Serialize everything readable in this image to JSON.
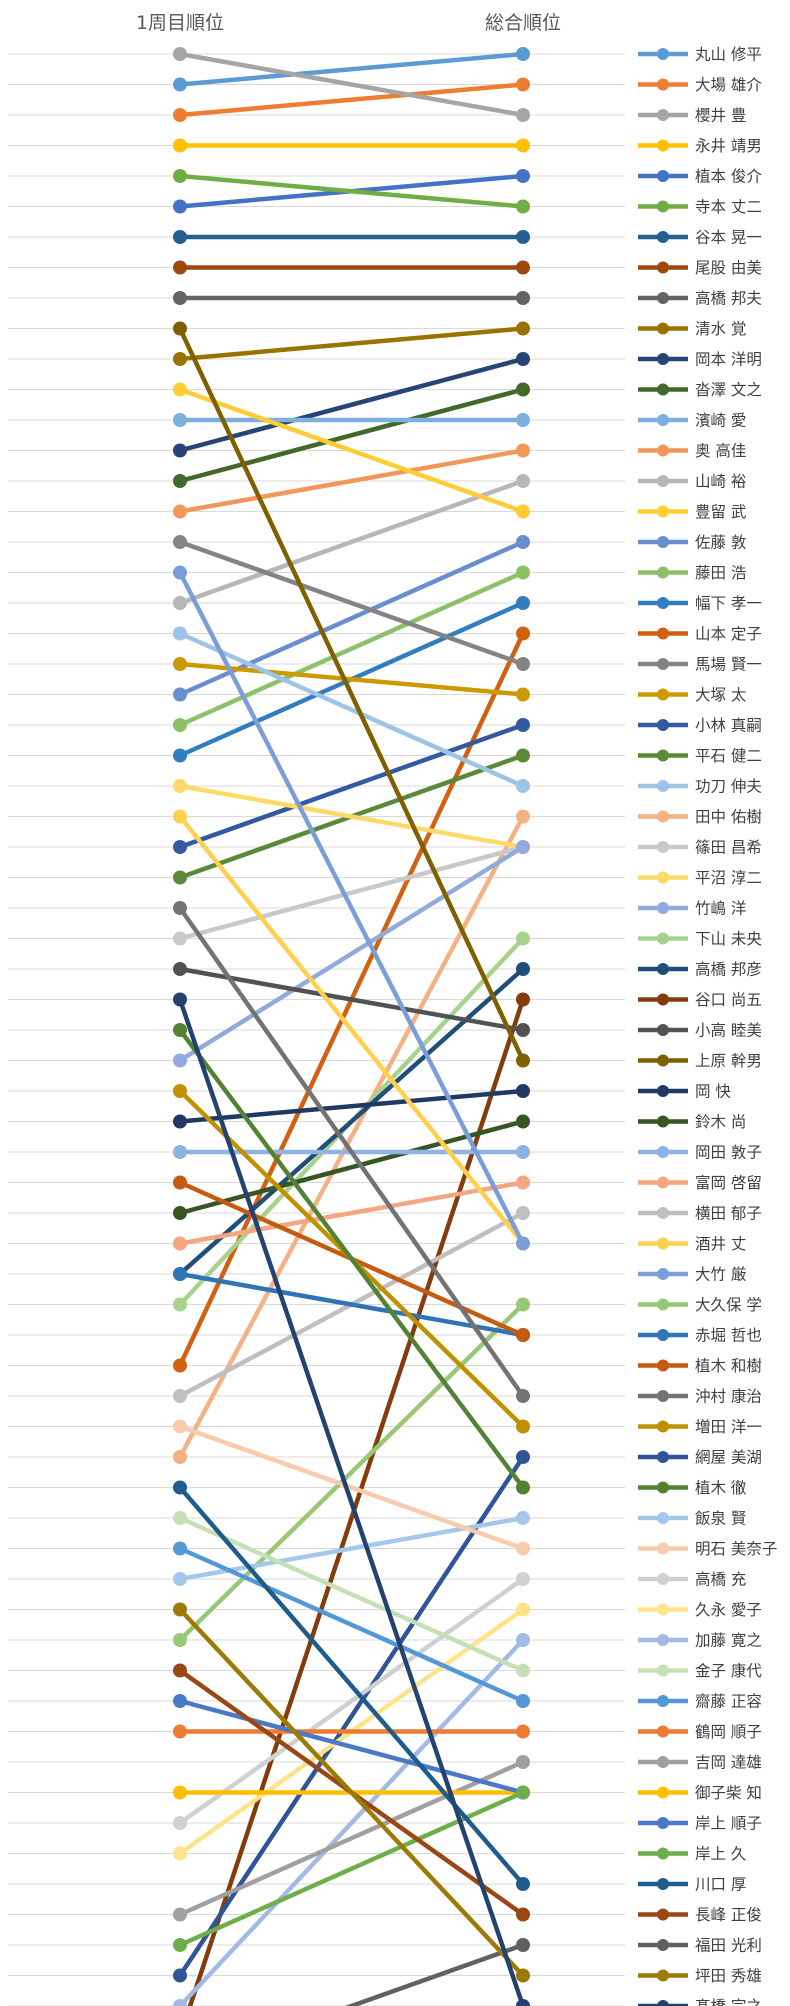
{
  "chart_data": {
    "type": "line",
    "x": [
      "1周目順位",
      "総合順位"
    ],
    "title": "",
    "xlabel": "",
    "ylabel": "",
    "legend_position": "right",
    "grid": true,
    "series": [
      {
        "name": "丸山 修平",
        "color": "#5B9BD5",
        "values": [
          2,
          1
        ]
      },
      {
        "name": "大場 雄介",
        "color": "#ED7D31",
        "values": [
          3,
          2
        ]
      },
      {
        "name": "櫻井 豊",
        "color": "#A5A5A5",
        "values": [
          1,
          3
        ]
      },
      {
        "name": "永井 靖男",
        "color": "#FFC000",
        "values": [
          4,
          4
        ]
      },
      {
        "name": "植本 俊介",
        "color": "#4472C4",
        "values": [
          6,
          5
        ]
      },
      {
        "name": "寺本 丈二",
        "color": "#70AD47",
        "values": [
          5,
          6
        ]
      },
      {
        "name": "谷本 晃一",
        "color": "#255E91",
        "values": [
          7,
          7
        ]
      },
      {
        "name": "尾股 由美",
        "color": "#9E480E",
        "values": [
          8,
          8
        ]
      },
      {
        "name": "高橋 邦夫",
        "color": "#636363",
        "values": [
          9,
          9
        ]
      },
      {
        "name": "清水 覚",
        "color": "#997300",
        "values": [
          11,
          10
        ]
      },
      {
        "name": "岡本 洋明",
        "color": "#264478",
        "values": [
          14,
          11
        ]
      },
      {
        "name": "沓澤 文之",
        "color": "#43682B",
        "values": [
          15,
          12
        ]
      },
      {
        "name": "濱崎 愛",
        "color": "#7CAFDD",
        "values": [
          13,
          13
        ]
      },
      {
        "name": "奥 高佳",
        "color": "#F1975A",
        "values": [
          16,
          14
        ]
      },
      {
        "name": "山崎 裕",
        "color": "#B7B7B7",
        "values": [
          19,
          15
        ]
      },
      {
        "name": "豊留 武",
        "color": "#FFCD33",
        "values": [
          12,
          16
        ]
      },
      {
        "name": "佐藤 敦",
        "color": "#698ED0",
        "values": [
          22,
          17
        ]
      },
      {
        "name": "藤田 浩",
        "color": "#8CC168",
        "values": [
          23,
          18
        ]
      },
      {
        "name": "幅下 孝一",
        "color": "#327DC2",
        "values": [
          24,
          19
        ]
      },
      {
        "name": "山本 定子",
        "color": "#D26012",
        "values": [
          44,
          20
        ]
      },
      {
        "name": "馬場 賢一",
        "color": "#848484",
        "values": [
          17,
          21
        ]
      },
      {
        "name": "大塚 太",
        "color": "#CC9A00",
        "values": [
          21,
          22
        ]
      },
      {
        "name": "小林 真嗣",
        "color": "#335AA1",
        "values": [
          27,
          23
        ]
      },
      {
        "name": "平石 健二",
        "color": "#5A8A39",
        "values": [
          28,
          24
        ]
      },
      {
        "name": "功刀 伸夫",
        "color": "#9DC3E6",
        "values": [
          20,
          25
        ]
      },
      {
        "name": "田中 佑樹",
        "color": "#F4B183",
        "values": [
          47,
          26
        ]
      },
      {
        "name": "篠田 昌希",
        "color": "#C9C9C9",
        "values": [
          30,
          27
        ]
      },
      {
        "name": "平沼 淳二",
        "color": "#FFD966",
        "values": [
          25,
          27
        ]
      },
      {
        "name": "竹嶋 洋",
        "color": "#8FAADC",
        "values": [
          34,
          27
        ]
      },
      {
        "name": "下山 未央",
        "color": "#A9D18E",
        "values": [
          42,
          30
        ]
      },
      {
        "name": "高橋 邦彦",
        "color": "#1F4E79",
        "values": [
          41,
          31
        ]
      },
      {
        "name": "谷口 尚五",
        "color": "#843C0C",
        "values": [
          66,
          32
        ]
      },
      {
        "name": "小高 睦美",
        "color": "#525252",
        "values": [
          31,
          33
        ]
      },
      {
        "name": "上原 幹男",
        "color": "#7F6000",
        "values": [
          10,
          34
        ]
      },
      {
        "name": "岡 快",
        "color": "#203864",
        "values": [
          36,
          35
        ]
      },
      {
        "name": "鈴木 尚",
        "color": "#375623",
        "values": [
          39,
          36
        ]
      },
      {
        "name": "岡田 敦子",
        "color": "#8DB4E2",
        "values": [
          37,
          37
        ]
      },
      {
        "name": "富岡 啓留",
        "color": "#F4A582",
        "values": [
          40,
          38
        ]
      },
      {
        "name": "横田 郁子",
        "color": "#BFBFBF",
        "values": [
          45,
          39
        ]
      },
      {
        "name": "酒井 丈",
        "color": "#FFD04D",
        "values": [
          26,
          40
        ]
      },
      {
        "name": "大竹 厳",
        "color": "#7B9ED9",
        "values": [
          18,
          40
        ]
      },
      {
        "name": "大久保 学",
        "color": "#97C875",
        "values": [
          53,
          42
        ]
      },
      {
        "name": "赤堀 哲也",
        "color": "#2F74B5",
        "values": [
          41,
          43
        ]
      },
      {
        "name": "植木 和樹",
        "color": "#C55A11",
        "values": [
          38,
          43
        ]
      },
      {
        "name": "沖村 康治",
        "color": "#737373",
        "values": [
          29,
          45
        ]
      },
      {
        "name": "増田 洋一",
        "color": "#BF9000",
        "values": [
          35,
          46
        ]
      },
      {
        "name": "網屋 美湖",
        "color": "#2F5597",
        "values": [
          64,
          47
        ]
      },
      {
        "name": "植木 徹",
        "color": "#548235",
        "values": [
          33,
          48
        ]
      },
      {
        "name": "飯泉 賢",
        "color": "#A4C8EB",
        "values": [
          51,
          49
        ]
      },
      {
        "name": "明石 美奈子",
        "color": "#F8CBAD",
        "values": [
          46,
          50
        ]
      },
      {
        "name": "高橋 充",
        "color": "#D0D0D0",
        "values": [
          59,
          51
        ]
      },
      {
        "name": "久永 愛子",
        "color": "#FFE38A",
        "values": [
          60,
          52
        ]
      },
      {
        "name": "加藤 寛之",
        "color": "#A3B9E6",
        "values": [
          65,
          53
        ]
      },
      {
        "name": "金子 康代",
        "color": "#C5E0B4",
        "values": [
          49,
          54
        ]
      },
      {
        "name": "齋藤 正容",
        "color": "#5496D6",
        "values": [
          50,
          55
        ]
      },
      {
        "name": "鶴岡 順子",
        "color": "#EE7A33",
        "values": [
          56,
          56
        ]
      },
      {
        "name": "吉岡 達雄",
        "color": "#A0A0A0",
        "values": [
          62,
          57
        ]
      },
      {
        "name": "御子柴 知",
        "color": "#FFBF00",
        "values": [
          58,
          58
        ]
      },
      {
        "name": "岸上 順子",
        "color": "#4A79C8",
        "values": [
          55,
          58
        ]
      },
      {
        "name": "岸上 久",
        "color": "#6EAE4A",
        "values": [
          63,
          58
        ]
      },
      {
        "name": "川口 厚",
        "color": "#1F5C8C",
        "values": [
          48,
          61
        ]
      },
      {
        "name": "長峰 正俊",
        "color": "#9A4715",
        "values": [
          54,
          62
        ]
      },
      {
        "name": "福田 光利",
        "color": "#606060",
        "values": [
          67,
          63
        ]
      },
      {
        "name": "坪田 秀雄",
        "color": "#9C7A05",
        "values": [
          52,
          64
        ]
      },
      {
        "name": "髙橋 宗之",
        "color": "#23426E",
        "values": [
          32,
          65
        ]
      }
    ]
  }
}
